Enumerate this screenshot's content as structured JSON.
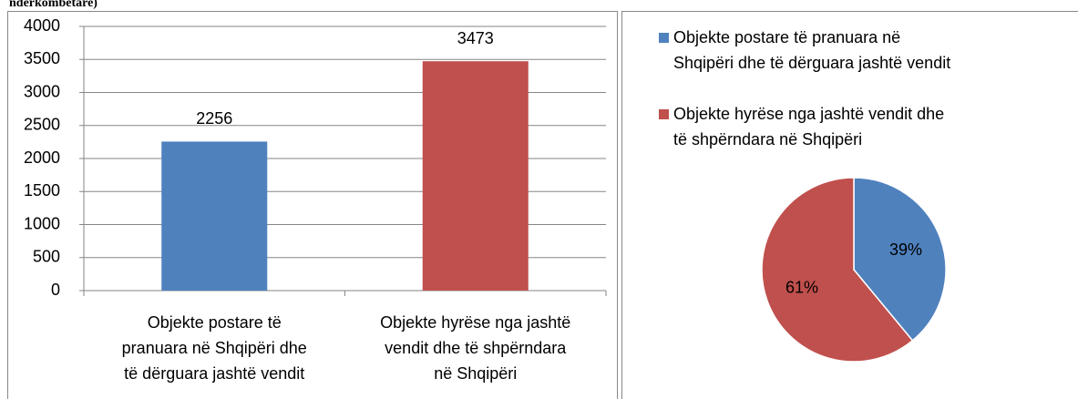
{
  "caption": "ndërkombëtare)",
  "chart_data": [
    {
      "type": "bar",
      "categories": [
        "Objekte postare të pranuara në Shqipëri dhe të dërguara jashtë vendit",
        "Objekte hyrëse nga jashtë vendit dhe të shpërndara në Shqipëri"
      ],
      "values": [
        2256,
        3473
      ],
      "colors": [
        "#4f81bd",
        "#c0504d"
      ],
      "ylim": [
        0,
        4000
      ],
      "yticks": [
        0,
        500,
        1000,
        1500,
        2000,
        2500,
        3000,
        3500,
        4000
      ],
      "grid": true
    },
    {
      "type": "pie",
      "categories": [
        "Objekte postare të pranuara në Shqipëri dhe të dërguara jashtë vendit",
        "Objekte hyrëse nga jashtë vendit dhe të shpërndara në Shqipëri"
      ],
      "values": [
        39,
        61
      ],
      "value_labels": [
        "39%",
        "61%"
      ],
      "colors": [
        "#4f81bd",
        "#c0504d"
      ],
      "legend": "top"
    }
  ]
}
